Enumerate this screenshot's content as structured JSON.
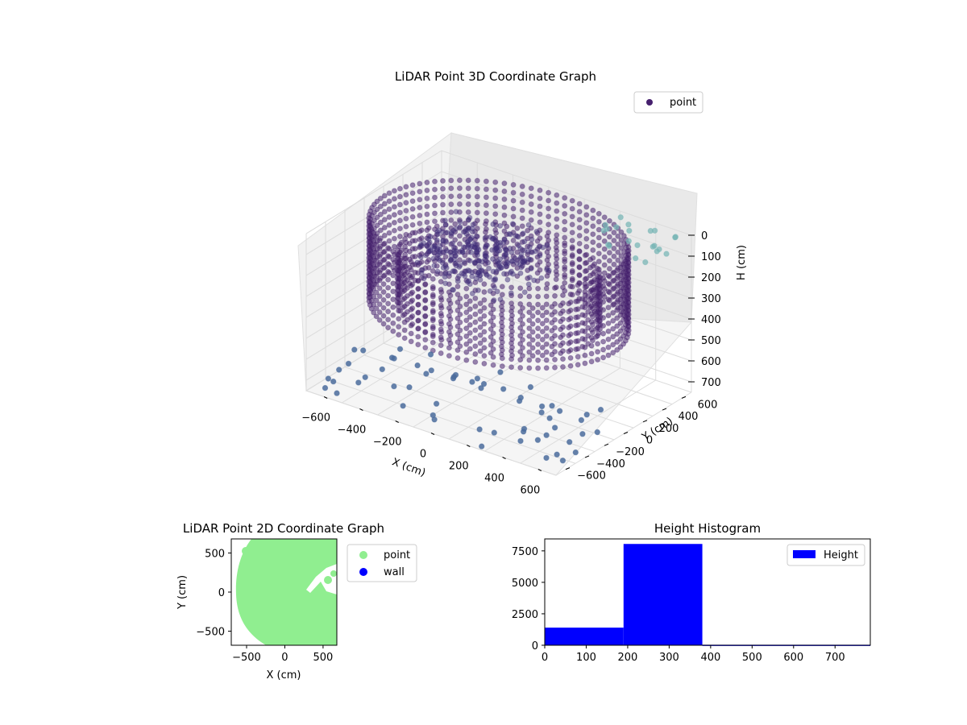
{
  "chart_data": [
    {
      "type": "scatter",
      "projection": "3d",
      "title": "LiDAR Point 3D Coordinate Graph",
      "xlabel": "X (cm)",
      "ylabel": "Y (cm)",
      "zlabel": "H (cm)",
      "xticks": [
        "−600",
        "−400",
        "−200",
        "0",
        "200",
        "400",
        "600"
      ],
      "yticks": [
        "−600",
        "−400",
        "−200",
        "0",
        "200",
        "400",
        "600"
      ],
      "zticks": [
        "0",
        "100",
        "200",
        "300",
        "400",
        "500",
        "600",
        "700"
      ],
      "xlim": [
        -700,
        700
      ],
      "ylim": [
        -700,
        700
      ],
      "zlim": [
        750,
        0
      ],
      "z_inverted": true,
      "legend": {
        "entries": [
          "point"
        ],
        "placement": "upper-right"
      },
      "colors": {
        "point": "#46206e",
        "far_point": "#4b6c9c",
        "high_point": "#74b4b4"
      },
      "series": [
        {
          "name": "point",
          "description_rings": [
            {
              "radius": 640,
              "h_from": 0,
              "h_to": 380
            },
            {
              "radius": 500,
              "h_from": 150,
              "h_to": 380
            }
          ]
        }
      ],
      "grid": true
    },
    {
      "type": "scatter",
      "title": "LiDAR Point 2D Coordinate Graph",
      "xlabel": "X (cm)",
      "ylabel": "Y (cm)",
      "xticks": [
        "−500",
        "0",
        "500"
      ],
      "yticks": [
        "500",
        "0",
        "−500"
      ],
      "xlim": [
        -700,
        680
      ],
      "ylim": [
        -680,
        680
      ],
      "legend": {
        "entries": [
          "point",
          "wall"
        ],
        "placement": "outside-right"
      },
      "colors": {
        "point": "#90ee90",
        "wall": "#0000ff"
      },
      "grid": false
    },
    {
      "type": "bar",
      "title": "Height Histogram",
      "xticks": [
        "0",
        "100",
        "200",
        "300",
        "400",
        "500",
        "600",
        "700"
      ],
      "yticks": [
        "0",
        "2500",
        "5000",
        "7500"
      ],
      "xlim": [
        0,
        785
      ],
      "ylim": [
        0,
        8450
      ],
      "bins": [
        {
          "from": 0,
          "to": 190,
          "count": 1400
        },
        {
          "from": 190,
          "to": 380,
          "count": 8050
        },
        {
          "from": 380,
          "to": 785,
          "count": 40
        }
      ],
      "legend": {
        "entries": [
          "Height"
        ],
        "placement": "upper-right"
      },
      "colors": {
        "bar": "#0000ff"
      },
      "grid": false
    }
  ]
}
